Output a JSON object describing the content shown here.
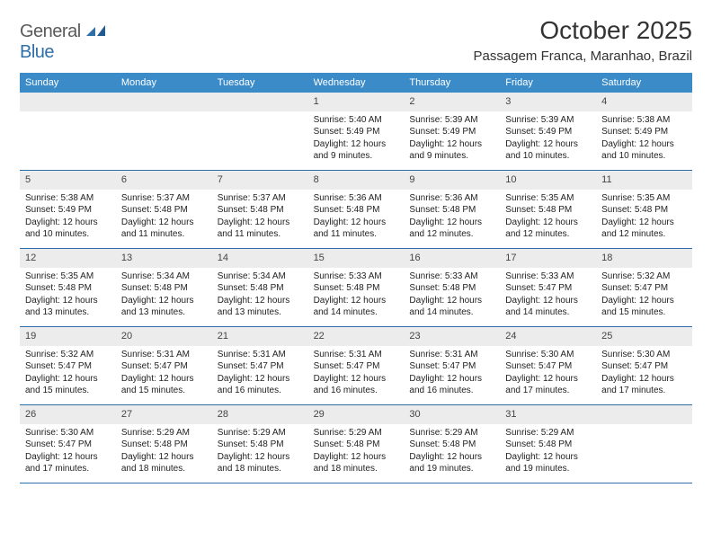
{
  "logo": {
    "word1": "General",
    "word2": "Blue"
  },
  "header": {
    "title": "October 2025",
    "location": "Passagem Franca, Maranhao, Brazil"
  },
  "colors": {
    "header_bar": "#3b8bc9",
    "daynum_bg": "#ececec",
    "rule": "#2f6fa8",
    "logo_gray": "#5a5a5a",
    "logo_blue": "#2f6fa8"
  },
  "dow": [
    "Sunday",
    "Monday",
    "Tuesday",
    "Wednesday",
    "Thursday",
    "Friday",
    "Saturday"
  ],
  "weeks": [
    [
      null,
      null,
      null,
      {
        "n": "1",
        "sr": "5:40 AM",
        "ss": "5:49 PM",
        "dl": "12 hours and 9 minutes."
      },
      {
        "n": "2",
        "sr": "5:39 AM",
        "ss": "5:49 PM",
        "dl": "12 hours and 9 minutes."
      },
      {
        "n": "3",
        "sr": "5:39 AM",
        "ss": "5:49 PM",
        "dl": "12 hours and 10 minutes."
      },
      {
        "n": "4",
        "sr": "5:38 AM",
        "ss": "5:49 PM",
        "dl": "12 hours and 10 minutes."
      }
    ],
    [
      {
        "n": "5",
        "sr": "5:38 AM",
        "ss": "5:49 PM",
        "dl": "12 hours and 10 minutes."
      },
      {
        "n": "6",
        "sr": "5:37 AM",
        "ss": "5:48 PM",
        "dl": "12 hours and 11 minutes."
      },
      {
        "n": "7",
        "sr": "5:37 AM",
        "ss": "5:48 PM",
        "dl": "12 hours and 11 minutes."
      },
      {
        "n": "8",
        "sr": "5:36 AM",
        "ss": "5:48 PM",
        "dl": "12 hours and 11 minutes."
      },
      {
        "n": "9",
        "sr": "5:36 AM",
        "ss": "5:48 PM",
        "dl": "12 hours and 12 minutes."
      },
      {
        "n": "10",
        "sr": "5:35 AM",
        "ss": "5:48 PM",
        "dl": "12 hours and 12 minutes."
      },
      {
        "n": "11",
        "sr": "5:35 AM",
        "ss": "5:48 PM",
        "dl": "12 hours and 12 minutes."
      }
    ],
    [
      {
        "n": "12",
        "sr": "5:35 AM",
        "ss": "5:48 PM",
        "dl": "12 hours and 13 minutes."
      },
      {
        "n": "13",
        "sr": "5:34 AM",
        "ss": "5:48 PM",
        "dl": "12 hours and 13 minutes."
      },
      {
        "n": "14",
        "sr": "5:34 AM",
        "ss": "5:48 PM",
        "dl": "12 hours and 13 minutes."
      },
      {
        "n": "15",
        "sr": "5:33 AM",
        "ss": "5:48 PM",
        "dl": "12 hours and 14 minutes."
      },
      {
        "n": "16",
        "sr": "5:33 AM",
        "ss": "5:48 PM",
        "dl": "12 hours and 14 minutes."
      },
      {
        "n": "17",
        "sr": "5:33 AM",
        "ss": "5:47 PM",
        "dl": "12 hours and 14 minutes."
      },
      {
        "n": "18",
        "sr": "5:32 AM",
        "ss": "5:47 PM",
        "dl": "12 hours and 15 minutes."
      }
    ],
    [
      {
        "n": "19",
        "sr": "5:32 AM",
        "ss": "5:47 PM",
        "dl": "12 hours and 15 minutes."
      },
      {
        "n": "20",
        "sr": "5:31 AM",
        "ss": "5:47 PM",
        "dl": "12 hours and 15 minutes."
      },
      {
        "n": "21",
        "sr": "5:31 AM",
        "ss": "5:47 PM",
        "dl": "12 hours and 16 minutes."
      },
      {
        "n": "22",
        "sr": "5:31 AM",
        "ss": "5:47 PM",
        "dl": "12 hours and 16 minutes."
      },
      {
        "n": "23",
        "sr": "5:31 AM",
        "ss": "5:47 PM",
        "dl": "12 hours and 16 minutes."
      },
      {
        "n": "24",
        "sr": "5:30 AM",
        "ss": "5:47 PM",
        "dl": "12 hours and 17 minutes."
      },
      {
        "n": "25",
        "sr": "5:30 AM",
        "ss": "5:47 PM",
        "dl": "12 hours and 17 minutes."
      }
    ],
    [
      {
        "n": "26",
        "sr": "5:30 AM",
        "ss": "5:47 PM",
        "dl": "12 hours and 17 minutes."
      },
      {
        "n": "27",
        "sr": "5:29 AM",
        "ss": "5:48 PM",
        "dl": "12 hours and 18 minutes."
      },
      {
        "n": "28",
        "sr": "5:29 AM",
        "ss": "5:48 PM",
        "dl": "12 hours and 18 minutes."
      },
      {
        "n": "29",
        "sr": "5:29 AM",
        "ss": "5:48 PM",
        "dl": "12 hours and 18 minutes."
      },
      {
        "n": "30",
        "sr": "5:29 AM",
        "ss": "5:48 PM",
        "dl": "12 hours and 19 minutes."
      },
      {
        "n": "31",
        "sr": "5:29 AM",
        "ss": "5:48 PM",
        "dl": "12 hours and 19 minutes."
      },
      null
    ]
  ],
  "labels": {
    "sunrise": "Sunrise:",
    "sunset": "Sunset:",
    "daylight": "Daylight:"
  }
}
